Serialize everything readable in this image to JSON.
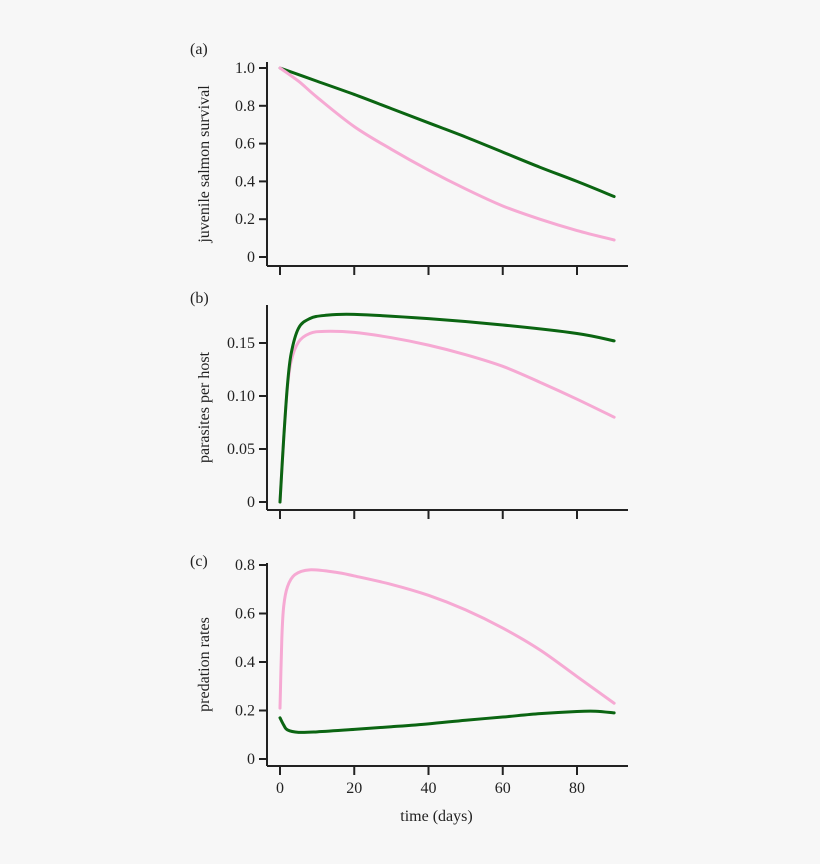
{
  "colors": {
    "green": "#0b6512",
    "pink": "#f6a9d3",
    "axis": "#222222",
    "background": "#f7f7f7"
  },
  "chart_data": [
    {
      "type": "line",
      "panel_label": "(a)",
      "ylabel": "juvenile salmon survival",
      "xlabel": "",
      "xlim": [
        0,
        90
      ],
      "ylim": [
        0,
        1.0
      ],
      "xticks": [
        0,
        20,
        40,
        60,
        80
      ],
      "xtick_labels": [],
      "yticks": [
        0,
        0.2,
        0.4,
        0.6,
        0.8,
        1.0
      ],
      "ytick_labels": [
        "0",
        "0.2",
        "0.4",
        "0.6",
        "0.8",
        "1.0"
      ],
      "series": [
        {
          "color": "#0b6512",
          "x": [
            0,
            10,
            20,
            30,
            40,
            50,
            60,
            70,
            80,
            90
          ],
          "y": [
            1.0,
            0.93,
            0.86,
            0.785,
            0.71,
            0.635,
            0.555,
            0.475,
            0.4,
            0.32
          ]
        },
        {
          "color": "#f6a9d3",
          "x": [
            0,
            5,
            10,
            20,
            30,
            40,
            50,
            60,
            70,
            80,
            90
          ],
          "y": [
            1.0,
            0.93,
            0.845,
            0.69,
            0.57,
            0.46,
            0.36,
            0.27,
            0.2,
            0.14,
            0.09
          ]
        }
      ]
    },
    {
      "type": "line",
      "panel_label": "(b)",
      "ylabel": "parasites per host",
      "xlabel": "",
      "xlim": [
        0,
        90
      ],
      "ylim": [
        0,
        0.18
      ],
      "xticks": [
        0,
        20,
        40,
        60,
        80
      ],
      "xtick_labels": [],
      "yticks": [
        0,
        0.05,
        0.1,
        0.15
      ],
      "ytick_labels": [
        "0",
        "0.05",
        "0.10",
        "0.15"
      ],
      "series": [
        {
          "color": "#f6a9d3",
          "x": [
            0,
            1,
            2,
            3,
            5,
            8,
            12,
            20,
            30,
            40,
            50,
            60,
            70,
            80,
            90
          ],
          "y": [
            0,
            0.06,
            0.108,
            0.133,
            0.151,
            0.159,
            0.161,
            0.16,
            0.155,
            0.148,
            0.139,
            0.128,
            0.113,
            0.097,
            0.08
          ]
        },
        {
          "color": "#0b6512",
          "x": [
            0,
            1,
            2,
            3,
            5,
            8,
            12,
            20,
            40,
            60,
            80,
            90
          ],
          "y": [
            0,
            0.06,
            0.11,
            0.14,
            0.164,
            0.173,
            0.176,
            0.177,
            0.173,
            0.167,
            0.159,
            0.152
          ]
        }
      ]
    },
    {
      "type": "line",
      "panel_label": "(c)",
      "ylabel": "predation rates",
      "xlabel": "time (days)",
      "xlim": [
        0,
        90
      ],
      "ylim": [
        0,
        0.8
      ],
      "xticks": [
        0,
        20,
        40,
        60,
        80
      ],
      "xtick_labels": [
        "0",
        "20",
        "40",
        "60",
        "80"
      ],
      "yticks": [
        0,
        0.2,
        0.4,
        0.6,
        0.8
      ],
      "ytick_labels": [
        "0",
        "0.2",
        "0.4",
        "0.6",
        "0.8"
      ],
      "series": [
        {
          "color": "#f6a9d3",
          "x": [
            0,
            0.5,
            1,
            2,
            4,
            8,
            15,
            20,
            30,
            40,
            50,
            60,
            70,
            80,
            90
          ],
          "y": [
            0.21,
            0.5,
            0.63,
            0.71,
            0.76,
            0.78,
            0.77,
            0.755,
            0.72,
            0.675,
            0.615,
            0.54,
            0.45,
            0.34,
            0.23
          ]
        },
        {
          "color": "#0b6512",
          "x": [
            0,
            1,
            2,
            5,
            10,
            20,
            30,
            40,
            50,
            60,
            70,
            80,
            85,
            90
          ],
          "y": [
            0.17,
            0.14,
            0.12,
            0.11,
            0.112,
            0.122,
            0.133,
            0.145,
            0.16,
            0.173,
            0.187,
            0.196,
            0.197,
            0.19
          ]
        }
      ]
    }
  ]
}
